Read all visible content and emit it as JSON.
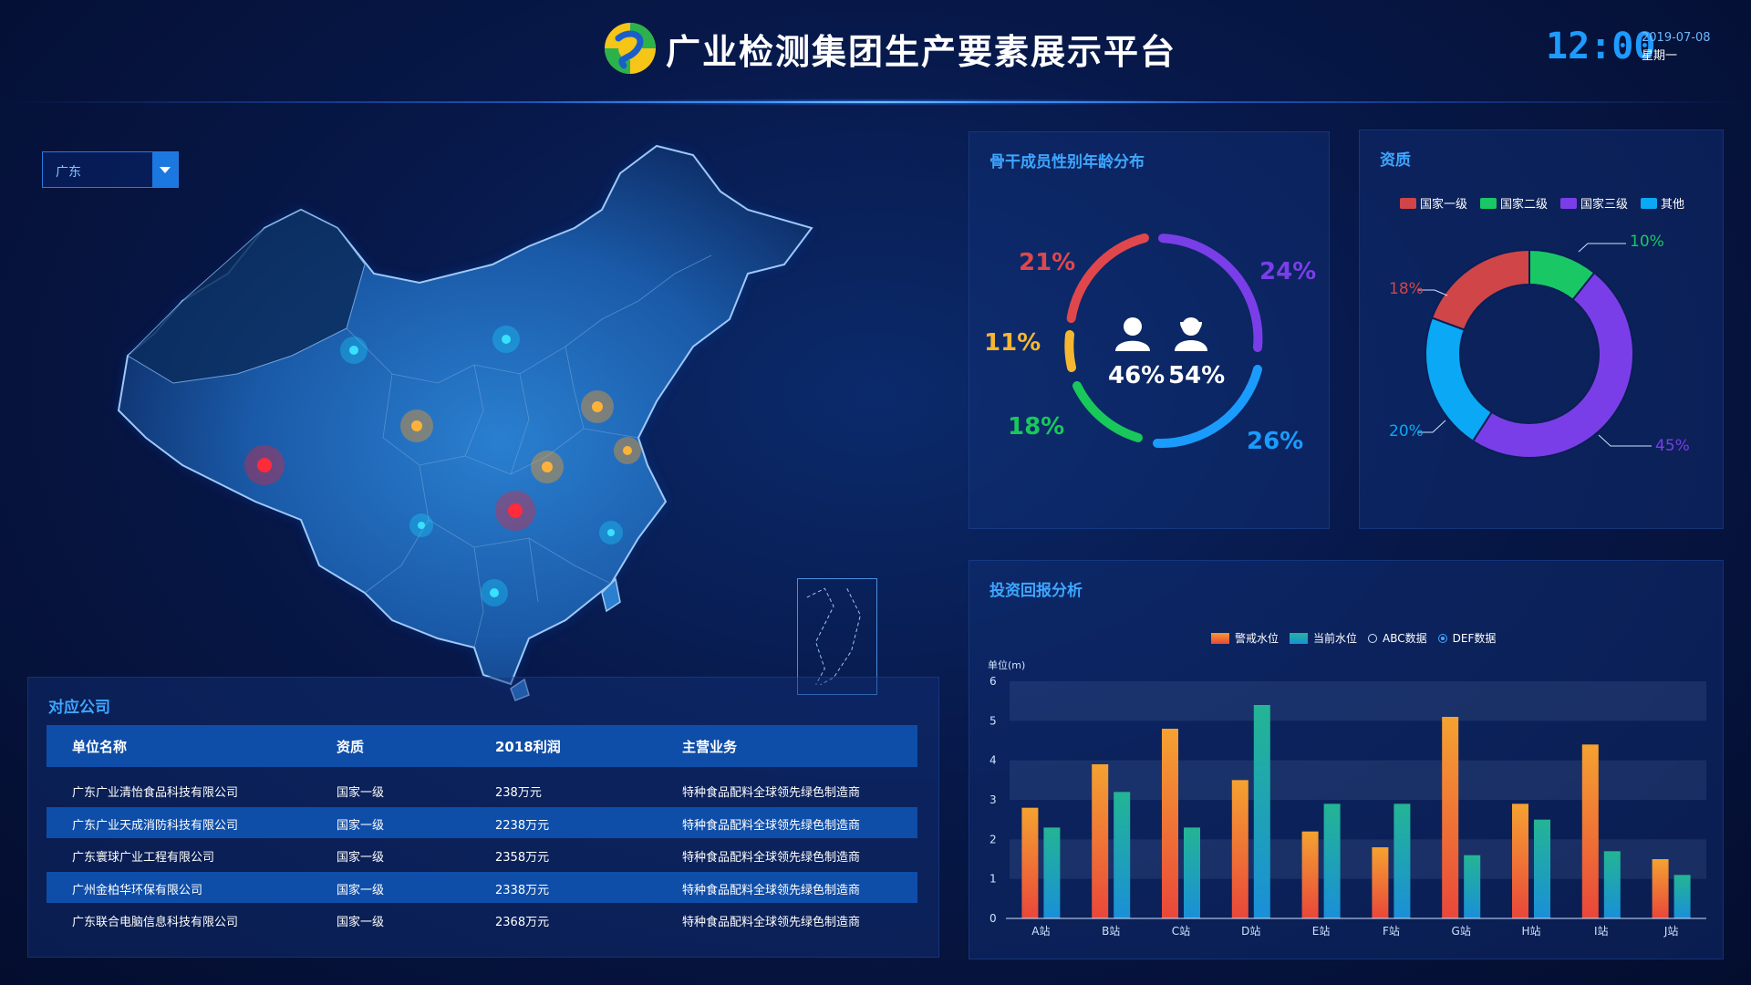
{
  "header": {
    "title": "广业检测集团生产要素展示平台",
    "time": "12:00",
    "date": "2019-07-08",
    "weekday": "星期一"
  },
  "region_select": {
    "value": "广东"
  },
  "gender_panel": {
    "title": "骨干成员性别年龄分布",
    "male_pct": "46%",
    "female_pct": "54%",
    "segments": [
      {
        "label": "21%",
        "color": "#e0474c"
      },
      {
        "label": "24%",
        "color": "#7a3ee8"
      },
      {
        "label": "11%",
        "color": "#f5b731"
      },
      {
        "label": "18%",
        "color": "#18c85a"
      },
      {
        "label": "26%",
        "color": "#1a9cff"
      }
    ]
  },
  "qualification_panel": {
    "title": "资质",
    "chart_data": {
      "type": "pie",
      "categories": [
        "国家一级",
        "国家二级",
        "国家三级",
        "其他"
      ],
      "values": [
        18,
        10,
        45,
        20
      ],
      "labels": [
        "18%",
        "10%",
        "45%",
        "20%"
      ],
      "colors": [
        "#d04548",
        "#19c865",
        "#7a3ee8",
        "#0aa8f5"
      ]
    }
  },
  "invest_panel": {
    "title": "投资回报分析",
    "legend": {
      "warning": "警戒水位",
      "current": "当前水位",
      "abc": "ABC数据",
      "def": "DEF数据"
    },
    "unit": "单位(m)",
    "chart_data": {
      "type": "bar",
      "categories": [
        "A站",
        "B站",
        "C站",
        "D站",
        "E站",
        "F站",
        "G站",
        "H站",
        "I站",
        "J站"
      ],
      "series": [
        {
          "name": "警戒水位",
          "values": [
            2.8,
            3.9,
            4.8,
            3.5,
            2.2,
            1.8,
            5.1,
            2.9,
            4.4,
            1.5
          ]
        },
        {
          "name": "当前水位",
          "values": [
            2.3,
            3.2,
            2.3,
            5.4,
            2.9,
            2.9,
            1.6,
            2.5,
            1.7,
            1.1
          ]
        }
      ],
      "ylim": [
        0,
        6
      ],
      "yticks": [
        "0",
        "1",
        "2",
        "3",
        "4",
        "5",
        "6"
      ]
    }
  },
  "company_panel": {
    "title": "对应公司",
    "headers": [
      "单位名称",
      "资质",
      "2018利润",
      "主营业务"
    ],
    "rows": [
      [
        "广东广业清怡食品科技有限公司",
        "国家一级",
        "238万元",
        "特种食品配料全球领先绿色制造商"
      ],
      [
        "广东广业天成消防科技有限公司",
        "国家一级",
        "2238万元",
        "特种食品配料全球领先绿色制造商"
      ],
      [
        "广东寰球广业工程有限公司",
        "国家一级",
        "2358万元",
        "特种食品配料全球领先绿色制造商"
      ],
      [
        "广州金柏华环保有限公司",
        "国家一级",
        "2338万元",
        "特种食品配料全球领先绿色制造商"
      ],
      [
        "广东联合电脑信息科技有限公司",
        "国家一级",
        "2368万元",
        "特种食品配料全球领先绿色制造商"
      ]
    ]
  }
}
